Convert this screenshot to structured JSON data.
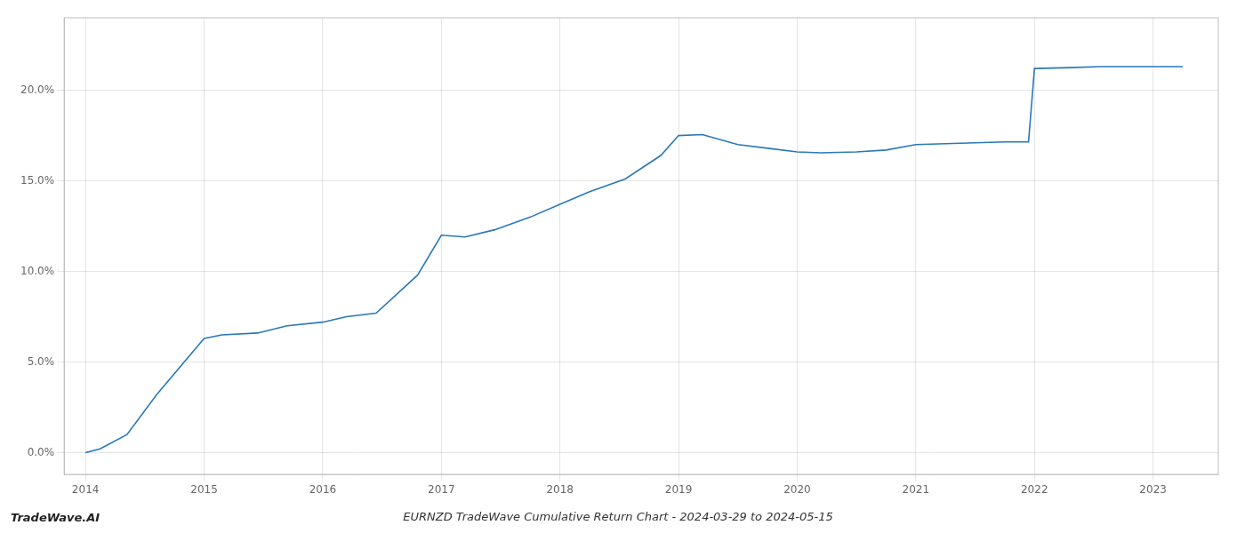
{
  "chart_data": {
    "type": "line",
    "title": "EURNZD TradeWave Cumulative Return Chart - 2024-03-29 to 2024-05-15",
    "annotations": [
      "TradeWave.AI"
    ],
    "x": [
      2014.0,
      2014.12,
      2014.35,
      2014.6,
      2015.0,
      2015.15,
      2015.45,
      2015.7,
      2016.0,
      2016.2,
      2016.45,
      2016.8,
      2017.0,
      2017.2,
      2017.45,
      2017.75,
      2018.0,
      2018.25,
      2018.55,
      2018.85,
      2019.0,
      2019.2,
      2019.5,
      2019.75,
      2020.0,
      2020.2,
      2020.5,
      2020.75,
      2021.0,
      2021.25,
      2021.5,
      2021.75,
      2021.95,
      2022.0,
      2022.3,
      2022.55,
      2022.75,
      2023.0,
      2023.25
    ],
    "values": [
      0.0,
      0.2,
      1.0,
      3.2,
      6.3,
      6.5,
      6.6,
      7.0,
      7.2,
      7.5,
      7.7,
      9.8,
      12.0,
      11.9,
      12.3,
      13.0,
      13.7,
      14.4,
      15.1,
      16.4,
      17.5,
      17.55,
      17.0,
      16.8,
      16.6,
      16.55,
      16.6,
      16.7,
      17.0,
      17.05,
      17.1,
      17.15,
      17.15,
      21.2,
      21.25,
      21.3,
      21.3,
      21.3,
      21.3
    ],
    "color": "#2878b9",
    "xlim": [
      2013.82,
      2023.55
    ],
    "ylim": [
      -1.2,
      24.0
    ],
    "xticks": [
      2014,
      2015,
      2016,
      2017,
      2018,
      2019,
      2020,
      2021,
      2022,
      2023
    ],
    "yticks": [
      {
        "value": 0.0,
        "label": "0.0%"
      },
      {
        "value": 5.0,
        "label": "5.0%"
      },
      {
        "value": 10.0,
        "label": "10.0%"
      },
      {
        "value": 15.0,
        "label": "15.0%"
      },
      {
        "value": 20.0,
        "label": "20.0%"
      }
    ],
    "grid": true
  }
}
